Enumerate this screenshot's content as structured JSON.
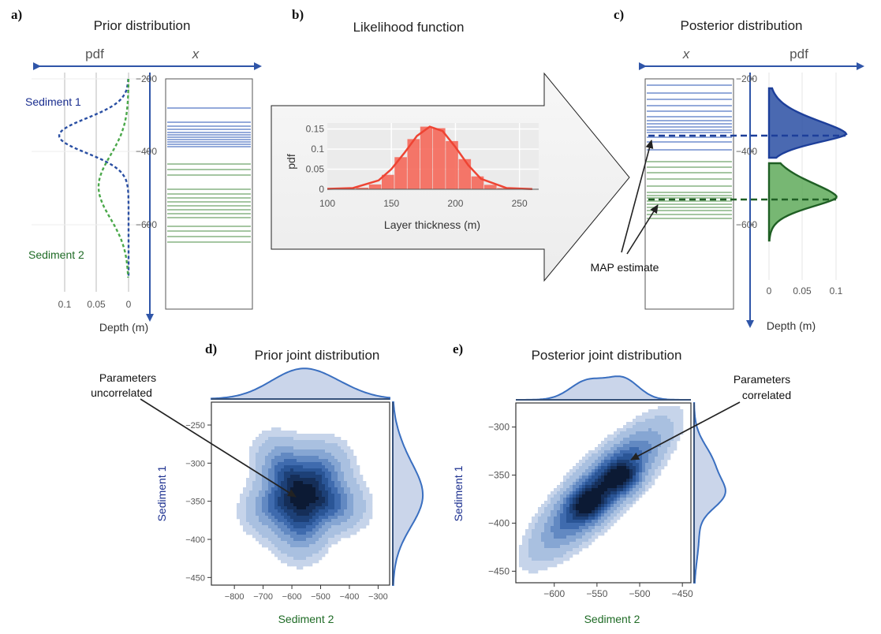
{
  "panels": {
    "a": {
      "letter": "a)",
      "title": "Prior distribution",
      "pdf_label": "pdf",
      "x_label": "x",
      "xticks": [
        "0.1",
        "0.05",
        "0"
      ],
      "depth_ticks": [
        "−200",
        "−400",
        "−600"
      ],
      "depth_label": "Depth (m)",
      "sediment1": "Sediment 1",
      "sediment2": "Sediment 2"
    },
    "b": {
      "letter": "b)",
      "title": "Likelihood function"
    },
    "c": {
      "letter": "c)",
      "title": "Posterior distribution",
      "pdf_label": "pdf",
      "x_label": "x",
      "xticks": [
        "0",
        "0.05",
        "0.1"
      ],
      "depth_ticks": [
        "−200",
        "−400",
        "−600"
      ],
      "depth_label": "Depth (m)",
      "annotation": "MAP estimate"
    },
    "d": {
      "letter": "d)",
      "title": "Prior joint distribution",
      "annotation_line1": "Parameters",
      "annotation_line2": "uncorrelated"
    },
    "e": {
      "letter": "e)",
      "title": "Posterior joint distribution",
      "annotation_line1": "Parameters",
      "annotation_line2": "correlated"
    }
  },
  "colors": {
    "blue": "#2a4fa3",
    "blue_light": "#7f97cf",
    "green": "#6a9e5a",
    "green_dark": "#1f5f24",
    "red": "#ee4433",
    "red_fill": "#f5685a",
    "axis_arrow": "#2f55a8"
  },
  "chart_data": [
    {
      "type": "bar",
      "title": "",
      "xlabel": "Layer thickness (m)",
      "ylabel": "pdf",
      "xlim": [
        100,
        265
      ],
      "ylim": [
        0,
        0.165
      ],
      "xticks": [
        "100",
        "150",
        "200",
        "250"
      ],
      "yticks": [
        "0",
        "0.05",
        "0.1",
        "0.15"
      ],
      "bin_centers": [
        117.5,
        127.5,
        137.5,
        147.5,
        157.5,
        167.5,
        177.5,
        187.5,
        197.5,
        207.5,
        217.5,
        227.5,
        237.5
      ],
      "values": [
        0.001,
        0.004,
        0.012,
        0.036,
        0.08,
        0.125,
        0.156,
        0.152,
        0.12,
        0.075,
        0.032,
        0.011,
        0.003
      ],
      "fit_x": [
        100,
        120,
        140,
        150,
        160,
        170,
        180,
        190,
        200,
        210,
        220,
        240,
        260
      ],
      "fit_y": [
        0.001,
        0.003,
        0.022,
        0.05,
        0.09,
        0.133,
        0.156,
        0.145,
        0.105,
        0.06,
        0.026,
        0.003,
        0.0005
      ]
    },
    {
      "type": "heatmap",
      "title": "",
      "xlabel": "Sediment 2",
      "ylabel": "Sediment 1",
      "xlim": [
        -880,
        -260
      ],
      "ylim": [
        -460,
        -220
      ],
      "xticks": [
        "−800",
        "−700",
        "−600",
        "−500",
        "−400",
        "−300"
      ],
      "yticks": [
        "−250",
        "−300",
        "−350",
        "−400",
        "−450"
      ],
      "center": [
        -560,
        -350
      ],
      "spread": [
        120,
        50
      ],
      "correlation": 0.0,
      "levels": 9
    },
    {
      "type": "heatmap",
      "title": "",
      "xlabel": "Sediment 2",
      "ylabel": "Sediment 1",
      "xlim": [
        -645,
        -440
      ],
      "ylim": [
        -462,
        -275
      ],
      "xticks": [
        "−600",
        "−550",
        "−500",
        "−450"
      ],
      "yticks": [
        "−300",
        "−350",
        "−400",
        "−450"
      ],
      "modes": [
        [
          -565,
          -372
        ],
        [
          -520,
          -343
        ]
      ],
      "correlation": 0.9,
      "levels": 9
    }
  ]
}
